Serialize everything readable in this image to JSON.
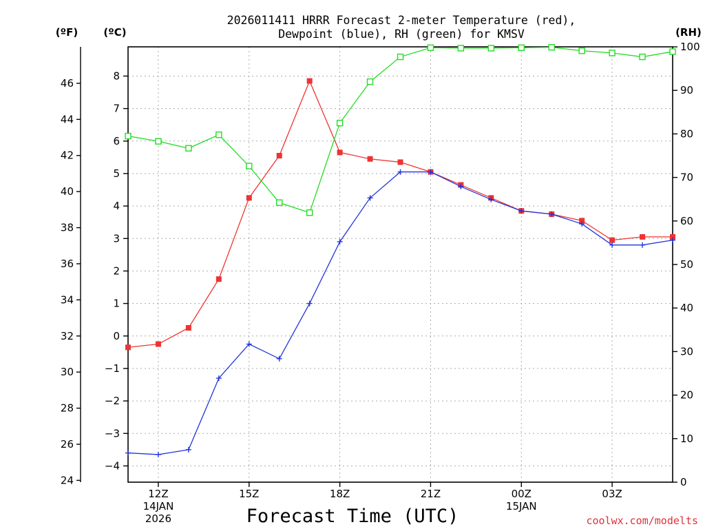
{
  "chart_data": {
    "type": "line",
    "title_line1": "2026011411 HRRR Forecast 2-meter Temperature (red),",
    "title_line2": "Dewpoint (blue), RH (green) for KMSV",
    "units": {
      "fahrenheit": "(ºF)",
      "celsius": "(ºC)",
      "rh": "(RH)"
    },
    "xlabel": "Forecast Time (UTC)",
    "credit": "coolwx.com/modelts",
    "x_hours": [
      0,
      1,
      2,
      3,
      4,
      5,
      6,
      7,
      8,
      9,
      10,
      11,
      12,
      13,
      14,
      15,
      16,
      17,
      18
    ],
    "x_range": [
      0,
      18
    ],
    "x_ticks": [
      {
        "hour": 1,
        "lines": [
          "12Z",
          "14JAN",
          "2026"
        ]
      },
      {
        "hour": 4,
        "lines": [
          "15Z"
        ]
      },
      {
        "hour": 7,
        "lines": [
          "18Z"
        ]
      },
      {
        "hour": 10,
        "lines": [
          "21Z"
        ]
      },
      {
        "hour": 13,
        "lines": [
          "00Z",
          "15JAN"
        ]
      },
      {
        "hour": 16,
        "lines": [
          "03Z"
        ]
      }
    ],
    "celsius_axis": {
      "range": [
        -4.5,
        8.9
      ],
      "ticks": [
        -4,
        -3,
        -2,
        -1,
        0,
        1,
        2,
        3,
        4,
        5,
        6,
        7,
        8
      ]
    },
    "fahrenheit_axis": {
      "ticks": [
        24,
        26,
        28,
        30,
        32,
        34,
        36,
        38,
        40,
        42,
        44,
        46
      ]
    },
    "rh_axis": {
      "range": [
        0,
        100
      ],
      "ticks": [
        0,
        10,
        20,
        30,
        40,
        50,
        60,
        70,
        80,
        90,
        100
      ]
    },
    "series": [
      {
        "name": "Temperature",
        "unit": "C",
        "color": "#ee3333",
        "marker": "filled-square",
        "values": [
          -0.35,
          -0.25,
          0.25,
          1.75,
          4.25,
          5.55,
          7.85,
          5.65,
          5.45,
          5.35,
          5.05,
          4.65,
          4.25,
          3.85,
          3.75,
          3.55,
          2.95,
          3.05,
          3.05
        ]
      },
      {
        "name": "Dewpoint",
        "unit": "C",
        "color": "#2233dd",
        "marker": "plus",
        "values": [
          -3.6,
          -3.65,
          -3.5,
          -1.3,
          -0.25,
          -0.7,
          1.0,
          2.9,
          4.25,
          5.05,
          5.05,
          4.6,
          4.2,
          3.85,
          3.75,
          3.45,
          2.8,
          2.8,
          2.95
        ]
      },
      {
        "name": "RH",
        "unit": "%",
        "color": "#22dd22",
        "marker": "open-square",
        "values": [
          79.5,
          78.3,
          76.7,
          79.8,
          72.6,
          64.2,
          61.9,
          82.5,
          92.0,
          97.7,
          99.8,
          99.7,
          99.7,
          99.8,
          99.9,
          99.1,
          98.6,
          97.7,
          98.9
        ]
      }
    ]
  }
}
